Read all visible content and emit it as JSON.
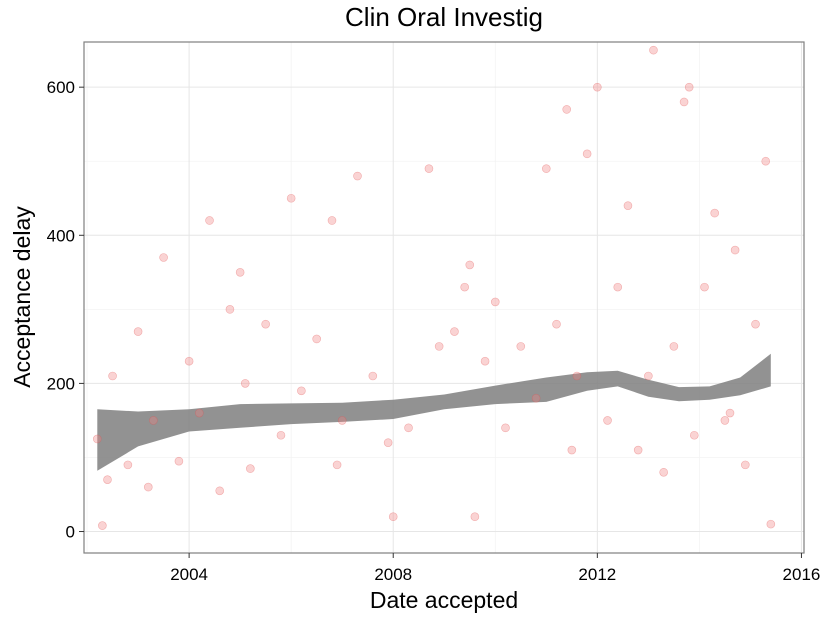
{
  "chart_data": {
    "type": "scatter",
    "title": "Clin Oral Investig",
    "xlabel": "Date accepted",
    "ylabel": "Acceptance delay",
    "xlim": [
      2001.94,
      2016.05
    ],
    "ylim": [
      -29,
      661
    ],
    "x_ticks": [
      2004,
      2008,
      2012,
      2016
    ],
    "y_ticks": [
      0,
      200,
      400,
      600
    ],
    "x_tick_labels": [
      "2004",
      "2008",
      "2012",
      "2016"
    ],
    "y_tick_labels": [
      "0",
      "200",
      "400",
      "600"
    ],
    "grid": true,
    "point_color": "#f08080",
    "smooth_color": "#7f7f7f",
    "points": {
      "x": [
        2002.2,
        2002.3,
        2002.4,
        2002.5,
        2002.8,
        2003.0,
        2003.3,
        2003.5,
        2003.8,
        2004.0,
        2004.2,
        2004.4,
        2004.6,
        2004.8,
        2005.0,
        2005.2,
        2005.5,
        2005.8,
        2006.0,
        2006.2,
        2006.5,
        2006.8,
        2007.0,
        2007.3,
        2007.6,
        2007.9,
        2008.0,
        2008.3,
        2008.7,
        2008.9,
        2009.2,
        2009.4,
        2009.5,
        2009.8,
        2010.0,
        2010.2,
        2010.5,
        2010.8,
        2011.0,
        2011.2,
        2011.4,
        2011.6,
        2011.8,
        2012.0,
        2012.2,
        2012.4,
        2012.6,
        2012.8,
        2013.0,
        2013.1,
        2013.3,
        2013.5,
        2013.7,
        2013.9,
        2014.1,
        2014.3,
        2014.5,
        2014.7,
        2014.9,
        2015.1,
        2015.3,
        2015.4,
        2003.2,
        2005.1,
        2006.9,
        2009.6,
        2011.5,
        2013.8,
        2014.6
      ],
      "y": [
        125,
        8,
        70,
        210,
        90,
        270,
        150,
        370,
        95,
        230,
        160,
        420,
        55,
        300,
        350,
        85,
        280,
        130,
        450,
        190,
        260,
        420,
        150,
        480,
        210,
        120,
        20,
        140,
        490,
        250,
        270,
        330,
        360,
        230,
        310,
        140,
        250,
        180,
        490,
        280,
        570,
        210,
        510,
        600,
        150,
        330,
        440,
        110,
        210,
        650,
        80,
        250,
        580,
        130,
        330,
        430,
        150,
        380,
        90,
        280,
        500,
        10,
        60,
        200,
        90,
        20,
        110,
        600,
        160
      ]
    },
    "smooth": {
      "x": [
        2002.2,
        2003.0,
        2004.0,
        2005.0,
        2006.0,
        2007.0,
        2008.0,
        2009.0,
        2010.0,
        2011.0,
        2011.8,
        2012.4,
        2013.0,
        2013.6,
        2014.2,
        2014.8,
        2015.4
      ],
      "upper": [
        165,
        162,
        165,
        172,
        173,
        174,
        178,
        185,
        197,
        208,
        215,
        217,
        205,
        195,
        196,
        208,
        240
      ],
      "lower": [
        82,
        115,
        135,
        140,
        145,
        148,
        152,
        165,
        172,
        175,
        190,
        196,
        182,
        176,
        178,
        184,
        196
      ]
    }
  }
}
